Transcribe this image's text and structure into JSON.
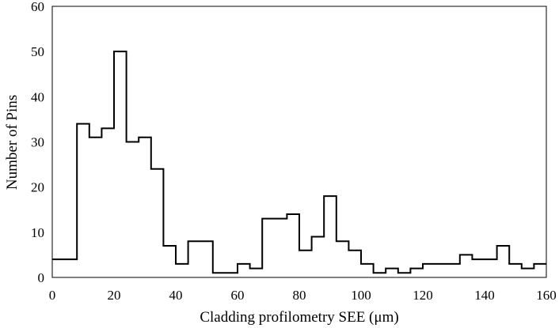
{
  "chart_data": {
    "type": "step",
    "title": "",
    "xlabel": "Cladding profilometry SEE (μm)",
    "ylabel": "Number of Pins",
    "xlim": [
      0,
      160
    ],
    "ylim": [
      0,
      60
    ],
    "xticks": [
      0,
      20,
      40,
      60,
      80,
      100,
      120,
      140,
      160
    ],
    "yticks": [
      0,
      10,
      20,
      30,
      40,
      50,
      60
    ],
    "grid": false,
    "legend": "none",
    "line_color": "#000000",
    "bin_width": 4,
    "bins": [
      {
        "x_start": 0,
        "count": 4
      },
      {
        "x_start": 4,
        "count": 4
      },
      {
        "x_start": 8,
        "count": 34
      },
      {
        "x_start": 12,
        "count": 31
      },
      {
        "x_start": 16,
        "count": 33
      },
      {
        "x_start": 20,
        "count": 50
      },
      {
        "x_start": 24,
        "count": 30
      },
      {
        "x_start": 28,
        "count": 31
      },
      {
        "x_start": 32,
        "count": 24
      },
      {
        "x_start": 36,
        "count": 7
      },
      {
        "x_start": 40,
        "count": 3
      },
      {
        "x_start": 44,
        "count": 8
      },
      {
        "x_start": 48,
        "count": 8
      },
      {
        "x_start": 52,
        "count": 1
      },
      {
        "x_start": 56,
        "count": 1
      },
      {
        "x_start": 60,
        "count": 3
      },
      {
        "x_start": 64,
        "count": 2
      },
      {
        "x_start": 68,
        "count": 13
      },
      {
        "x_start": 72,
        "count": 13
      },
      {
        "x_start": 76,
        "count": 14
      },
      {
        "x_start": 80,
        "count": 6
      },
      {
        "x_start": 84,
        "count": 9
      },
      {
        "x_start": 88,
        "count": 18
      },
      {
        "x_start": 92,
        "count": 8
      },
      {
        "x_start": 96,
        "count": 6
      },
      {
        "x_start": 100,
        "count": 3
      },
      {
        "x_start": 104,
        "count": 1
      },
      {
        "x_start": 108,
        "count": 2
      },
      {
        "x_start": 112,
        "count": 1
      },
      {
        "x_start": 116,
        "count": 2
      },
      {
        "x_start": 120,
        "count": 3
      },
      {
        "x_start": 124,
        "count": 3
      },
      {
        "x_start": 128,
        "count": 3
      },
      {
        "x_start": 132,
        "count": 5
      },
      {
        "x_start": 136,
        "count": 4
      },
      {
        "x_start": 140,
        "count": 4
      },
      {
        "x_start": 144,
        "count": 7
      },
      {
        "x_start": 148,
        "count": 3
      },
      {
        "x_start": 152,
        "count": 2
      },
      {
        "x_start": 156,
        "count": 3
      }
    ]
  }
}
